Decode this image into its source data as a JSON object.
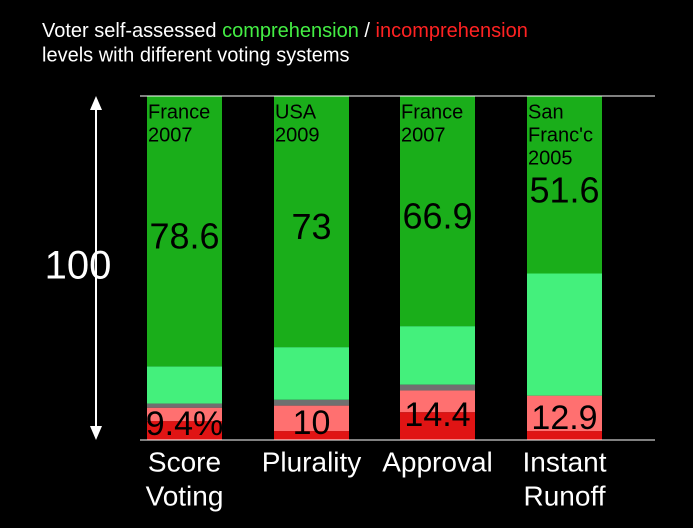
{
  "chart_data": {
    "type": "stacked_bar",
    "title": {
      "parts": [
        {
          "text": "Voter self-assessed ",
          "color": "#ffffff"
        },
        {
          "text": "comprehension",
          "color": "#44ee44"
        },
        {
          "text": " / ",
          "color": "#ffffff"
        },
        {
          "text": "incomprehension",
          "color": "#ff2222"
        }
      ],
      "line2": "levels with different voting systems"
    },
    "scale_label": "100",
    "categories": [
      [
        "Score",
        "Voting"
      ],
      [
        "Plurality"
      ],
      [
        "Approval"
      ],
      [
        "Instant",
        "Runoff"
      ]
    ],
    "sources": [
      [
        "France",
        "2007"
      ],
      [
        "USA",
        "2009"
      ],
      [
        "France",
        "2007"
      ],
      [
        "San",
        "Franc'c",
        "2005"
      ]
    ],
    "ylim": [
      0,
      100
    ],
    "series": [
      {
        "color": "#e01414",
        "values": [
          5.5,
          2.6,
          8.1,
          2.6
        ]
      },
      {
        "color": "#ff7070",
        "values": [
          3.9,
          7.4,
          6.3,
          10.3
        ]
      },
      {
        "color": "#707070",
        "values": [
          1.2,
          1.7,
          1.7,
          0
        ]
      },
      {
        "color": "#44f07c",
        "values": [
          10.8,
          15.3,
          17.0,
          35.5
        ]
      },
      {
        "color": "#1aae1a",
        "values": [
          78.6,
          73,
          66.9,
          51.6
        ]
      }
    ],
    "incomprehension_totals": {
      "values": [
        9.4,
        10,
        14.4,
        12.9
      ],
      "value_labels": [
        "9.4%",
        "10",
        "14.4",
        "12.9"
      ]
    }
  }
}
